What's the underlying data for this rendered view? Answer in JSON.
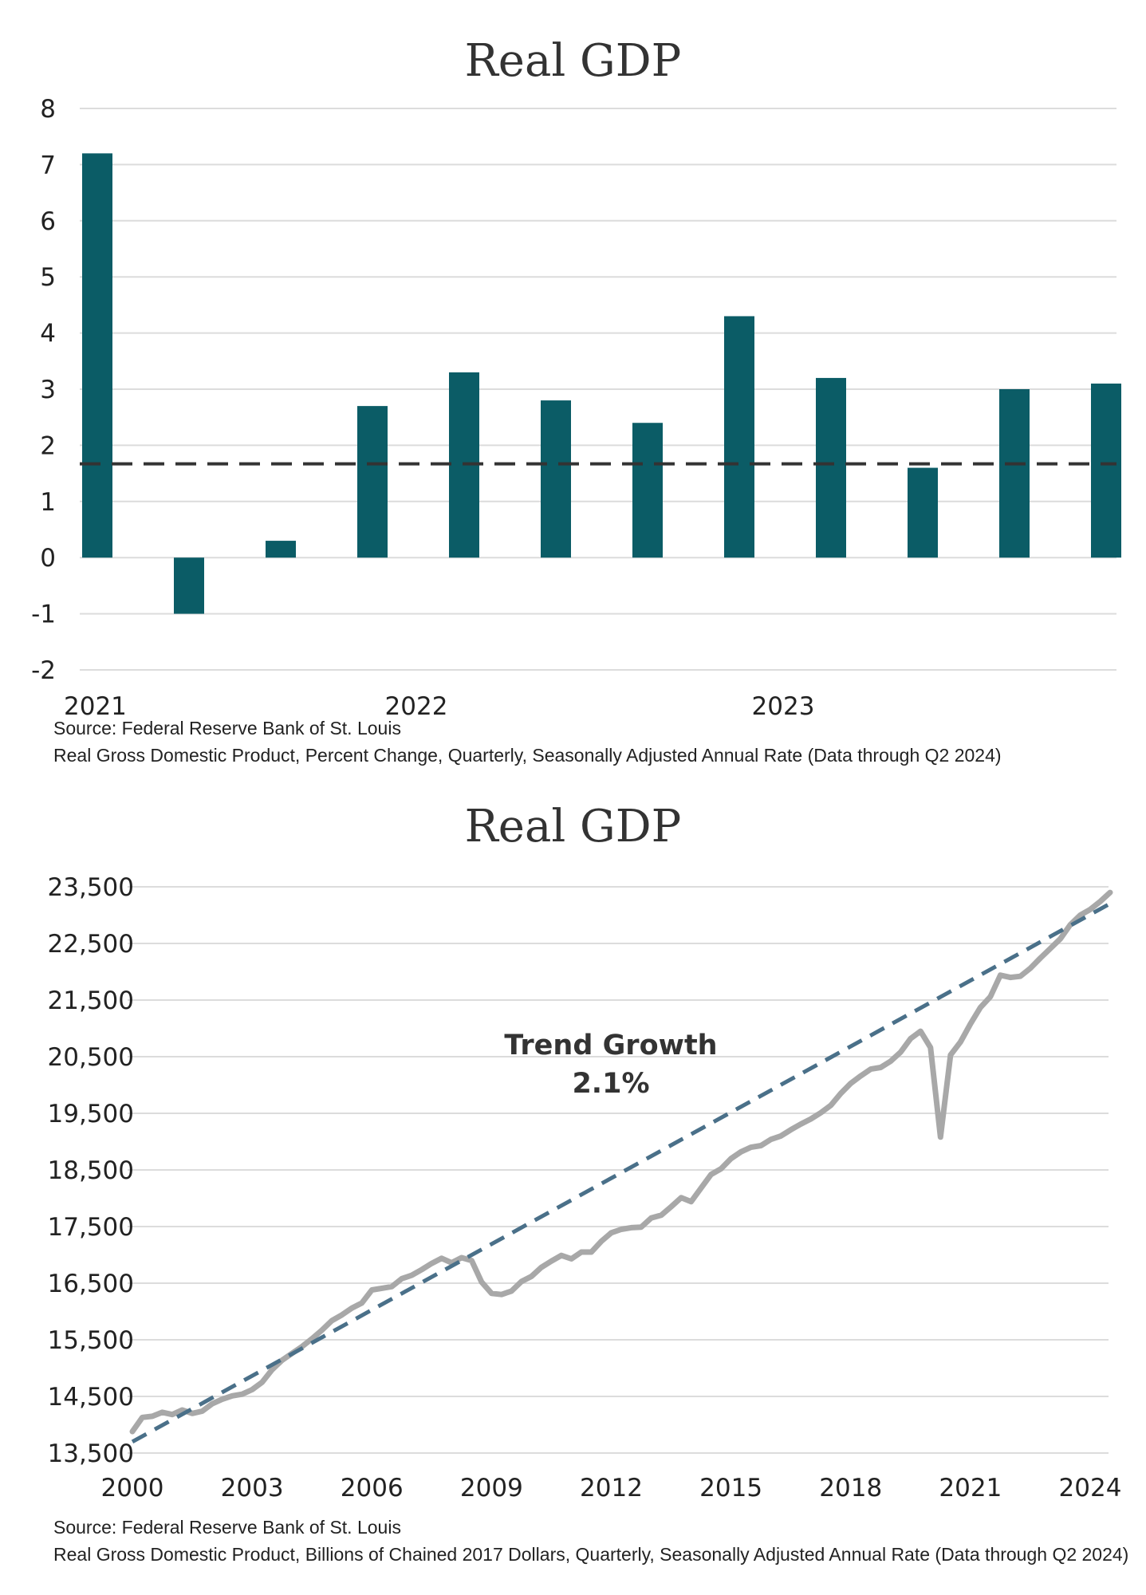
{
  "colors": {
    "bar": "#0b5c66",
    "reference_line": "#333333",
    "gdp_line": "#a8a8a8",
    "trend_line": "#4a7089",
    "gridline": "#dcdcdc"
  },
  "chart_data": [
    {
      "type": "bar",
      "title": "Real GDP",
      "xlabel": "",
      "ylabel": "",
      "ylim": [
        -2,
        8
      ],
      "yticks": [
        "8",
        "7",
        "6",
        "5",
        "4",
        "3",
        "2",
        "1",
        "0",
        "-1",
        "-2"
      ],
      "ytick_values": [
        8,
        7,
        6,
        5,
        4,
        3,
        2,
        1,
        0,
        -1,
        -2
      ],
      "x_tick_labels": [
        "2021",
        "2022",
        "2023"
      ],
      "x_tick_quarter_index": [
        0,
        4,
        8
      ],
      "values": [
        7.2,
        -1.0,
        0.3,
        2.7,
        3.3,
        2.8,
        2.4,
        4.3,
        3.2,
        1.6,
        3.0,
        3.1
      ],
      "reference_line": 1.67,
      "grid": true,
      "legend": "none",
      "source": "Source: Federal Reserve Bank of St. Louis",
      "note": "Real Gross Domestic Product, Percent Change, Quarterly, Seasonally Adjusted Annual Rate (Data through Q2 2024)"
    },
    {
      "type": "line",
      "title": "Real GDP",
      "xlabel": "",
      "ylabel": "",
      "ylim": [
        13500,
        23500
      ],
      "xlim": [
        2000,
        2024.5
      ],
      "yticks": [
        "23,500",
        "22,500",
        "21,500",
        "20,500",
        "19,500",
        "18,500",
        "17,500",
        "16,500",
        "15,500",
        "14,500",
        "13,500"
      ],
      "ytick_values": [
        23500,
        22500,
        21500,
        20500,
        19500,
        18500,
        17500,
        16500,
        15500,
        14500,
        13500
      ],
      "xticks": [
        "2000",
        "2003",
        "2006",
        "2009",
        "2012",
        "2015",
        "2018",
        "2021",
        "2024"
      ],
      "xtick_values": [
        2000,
        2003,
        2006,
        2009,
        2012,
        2015,
        2018,
        2021,
        2024
      ],
      "annotation": {
        "line1": "Trend Growth",
        "line2": "2.1%"
      },
      "grid": true,
      "legend": "none",
      "series": [
        {
          "points": [
            [
              2000.0,
              13880
            ],
            [
              2000.25,
              14130
            ],
            [
              2000.5,
              14150
            ],
            [
              2000.75,
              14220
            ],
            [
              2001.0,
              14180
            ],
            [
              2001.25,
              14260
            ],
            [
              2001.5,
              14200
            ],
            [
              2001.75,
              14240
            ],
            [
              2002.0,
              14370
            ],
            [
              2002.25,
              14450
            ],
            [
              2002.5,
              14510
            ],
            [
              2002.75,
              14540
            ],
            [
              2003.0,
              14620
            ],
            [
              2003.25,
              14750
            ],
            [
              2003.5,
              14970
            ],
            [
              2003.75,
              15140
            ],
            [
              2004.0,
              15260
            ],
            [
              2004.25,
              15380
            ],
            [
              2004.5,
              15520
            ],
            [
              2004.75,
              15670
            ],
            [
              2005.0,
              15840
            ],
            [
              2005.25,
              15940
            ],
            [
              2005.5,
              16060
            ],
            [
              2005.75,
              16150
            ],
            [
              2006.0,
              16380
            ],
            [
              2006.25,
              16410
            ],
            [
              2006.5,
              16440
            ],
            [
              2006.75,
              16580
            ],
            [
              2007.0,
              16640
            ],
            [
              2007.25,
              16740
            ],
            [
              2007.5,
              16850
            ],
            [
              2007.75,
              16940
            ],
            [
              2008.0,
              16860
            ],
            [
              2008.25,
              16950
            ],
            [
              2008.5,
              16900
            ],
            [
              2008.75,
              16520
            ],
            [
              2009.0,
              16320
            ],
            [
              2009.25,
              16300
            ],
            [
              2009.5,
              16360
            ],
            [
              2009.75,
              16530
            ],
            [
              2010.0,
              16620
            ],
            [
              2010.25,
              16780
            ],
            [
              2010.5,
              16890
            ],
            [
              2010.75,
              16990
            ],
            [
              2011.0,
              16930
            ],
            [
              2011.25,
              17050
            ],
            [
              2011.5,
              17050
            ],
            [
              2011.75,
              17240
            ],
            [
              2012.0,
              17390
            ],
            [
              2012.25,
              17450
            ],
            [
              2012.5,
              17480
            ],
            [
              2012.75,
              17490
            ],
            [
              2013.0,
              17650
            ],
            [
              2013.25,
              17700
            ],
            [
              2013.5,
              17850
            ],
            [
              2013.75,
              18010
            ],
            [
              2014.0,
              17940
            ],
            [
              2014.25,
              18180
            ],
            [
              2014.5,
              18420
            ],
            [
              2014.75,
              18520
            ],
            [
              2015.0,
              18700
            ],
            [
              2015.25,
              18820
            ],
            [
              2015.5,
              18900
            ],
            [
              2015.75,
              18930
            ],
            [
              2016.0,
              19040
            ],
            [
              2016.25,
              19100
            ],
            [
              2016.5,
              19210
            ],
            [
              2016.75,
              19310
            ],
            [
              2017.0,
              19400
            ],
            [
              2017.25,
              19510
            ],
            [
              2017.5,
              19640
            ],
            [
              2017.75,
              19850
            ],
            [
              2018.0,
              20030
            ],
            [
              2018.25,
              20160
            ],
            [
              2018.5,
              20280
            ],
            [
              2018.75,
              20310
            ],
            [
              2019.0,
              20420
            ],
            [
              2019.25,
              20580
            ],
            [
              2019.5,
              20820
            ],
            [
              2019.75,
              20950
            ],
            [
              2020.0,
              20660
            ],
            [
              2020.25,
              19080
            ],
            [
              2020.5,
              20530
            ],
            [
              2020.75,
              20760
            ],
            [
              2021.0,
              21080
            ],
            [
              2021.25,
              21370
            ],
            [
              2021.5,
              21560
            ],
            [
              2021.75,
              21940
            ],
            [
              2022.0,
              21900
            ],
            [
              2022.25,
              21920
            ],
            [
              2022.5,
              22060
            ],
            [
              2022.75,
              22240
            ],
            [
              2023.0,
              22410
            ],
            [
              2023.25,
              22580
            ],
            [
              2023.5,
              22830
            ],
            [
              2023.75,
              23000
            ],
            [
              2024.0,
              23100
            ],
            [
              2024.25,
              23240
            ],
            [
              2024.5,
              23400
            ]
          ]
        },
        {
          "style": "dashed",
          "points": [
            [
              2000.0,
              13700
            ],
            [
              2024.5,
              23250
            ]
          ]
        }
      ],
      "source": "Source: Federal Reserve Bank of St. Louis",
      "note": "Real Gross Domestic Product, Billions of Chained 2017 Dollars, Quarterly, Seasonally Adjusted Annual Rate (Data through Q2 2024)"
    }
  ]
}
